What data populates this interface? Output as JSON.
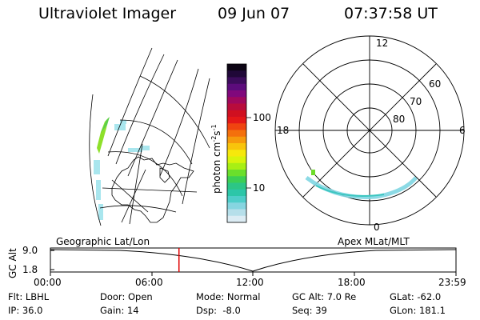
{
  "header": {
    "instrument": "Ultraviolet Imager",
    "date": "09 Jun 07",
    "time": "07:37:58 UT"
  },
  "colorbar": {
    "label_main": "photon cm",
    "label_exp1": "-2",
    "label_s": "s",
    "label_exp2": "-1",
    "ticks": [
      "100",
      "10"
    ],
    "colors": [
      "#dcecf4",
      "#b6dfea",
      "#86d5e0",
      "#4ecdc9",
      "#2cc6a8",
      "#2cc686",
      "#3ccf54",
      "#6bdf2c",
      "#a8ef14",
      "#d8f40c",
      "#f6e80c",
      "#f8c40c",
      "#f69a0c",
      "#f4700c",
      "#f04410",
      "#e41818",
      "#d01020",
      "#b80c3c",
      "#a0085c",
      "#80087c",
      "#5c0c7c",
      "#3c0c5c",
      "#200838",
      "#0c0414"
    ]
  },
  "polar_plot": {
    "mlt_labels": {
      "top": "12",
      "left": "18",
      "right": "6",
      "bottom": "0"
    },
    "lat_labels": [
      "60",
      "70",
      "80"
    ]
  },
  "timeline": {
    "y_axis_label": "GC Alt",
    "y_ticks": [
      "9.0",
      "1.8"
    ],
    "left_title": "Geographic Lat/Lon",
    "right_title": "Apex MLat/MLT",
    "x_ticks": [
      "00:00",
      "06:00",
      "12:00",
      "18:00",
      "23:59"
    ],
    "marker_fraction": 0.317,
    "marker_color": "#e00000"
  },
  "footer": {
    "row1": [
      "Flt: LBHL",
      "Door: Open",
      "Mode: Normal",
      "GC Alt: 7.0 Re",
      "GLat: -62.0"
    ],
    "row2": [
      "IP: 36.0",
      "Gain: 14",
      "Dsp:  -8.0",
      "Seq: 39",
      "GLon: 181.1"
    ]
  }
}
